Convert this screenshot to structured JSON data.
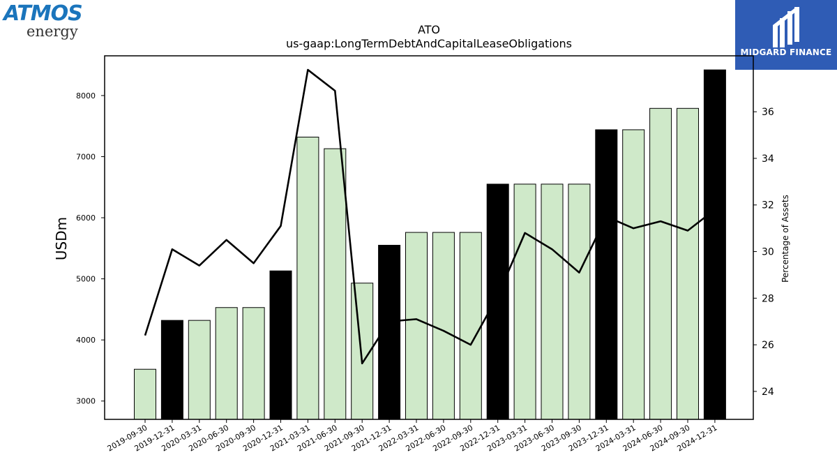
{
  "brand": {
    "company_logo_text": "ATMOS",
    "company_logo_subtext": "energy",
    "publisher_name": "MIDGARD FINANCE",
    "publisher_color": "#2f5cb5",
    "company_color": "#1b75bc"
  },
  "chart_data": {
    "type": "bar",
    "title": "ATO",
    "subtitle": "us-gaap:LongTermDebtAndCapitalLeaseObligations",
    "ylabel": "USDm",
    "y2label": "Percentage of Assets",
    "ylim": [
      2700,
      8650
    ],
    "y2lim": [
      22.8,
      38.4
    ],
    "yticks": [
      3000,
      4000,
      5000,
      6000,
      7000,
      8000
    ],
    "y2ticks": [
      24,
      26,
      28,
      30,
      32,
      34,
      36
    ],
    "categories": [
      "2019-09-30",
      "2019-12-31",
      "2020-03-31",
      "2020-06-30",
      "2020-09-30",
      "2020-12-31",
      "2021-03-31",
      "2021-06-30",
      "2021-09-30",
      "2021-12-31",
      "2022-03-31",
      "2022-06-30",
      "2022-09-30",
      "2022-12-31",
      "2023-03-31",
      "2023-06-30",
      "2023-09-30",
      "2023-12-31",
      "2024-03-31",
      "2024-06-30",
      "2024-09-30",
      "2024-12-31"
    ],
    "series": [
      {
        "kind": "bar",
        "values": [
          3520,
          4320,
          4320,
          4530,
          4530,
          5130,
          7320,
          7130,
          4930,
          5550,
          5760,
          5760,
          5760,
          6550,
          6550,
          6550,
          6550,
          7440,
          7440,
          7790,
          7790,
          8420
        ],
        "highlight": [
          false,
          true,
          false,
          false,
          false,
          true,
          false,
          false,
          false,
          true,
          false,
          false,
          false,
          true,
          false,
          false,
          false,
          true,
          false,
          false,
          false,
          true
        ],
        "color": "#cfe9c9",
        "highlight_color": "#000000"
      },
      {
        "kind": "line",
        "axis": "right",
        "values": [
          26.4,
          30.1,
          29.4,
          30.5,
          29.5,
          31.1,
          37.8,
          36.9,
          25.2,
          27.0,
          27.1,
          26.6,
          26.0,
          28.1,
          30.8,
          30.1,
          29.1,
          31.5,
          31.0,
          31.3,
          30.9,
          31.8
        ],
        "color": "#000000"
      }
    ]
  }
}
